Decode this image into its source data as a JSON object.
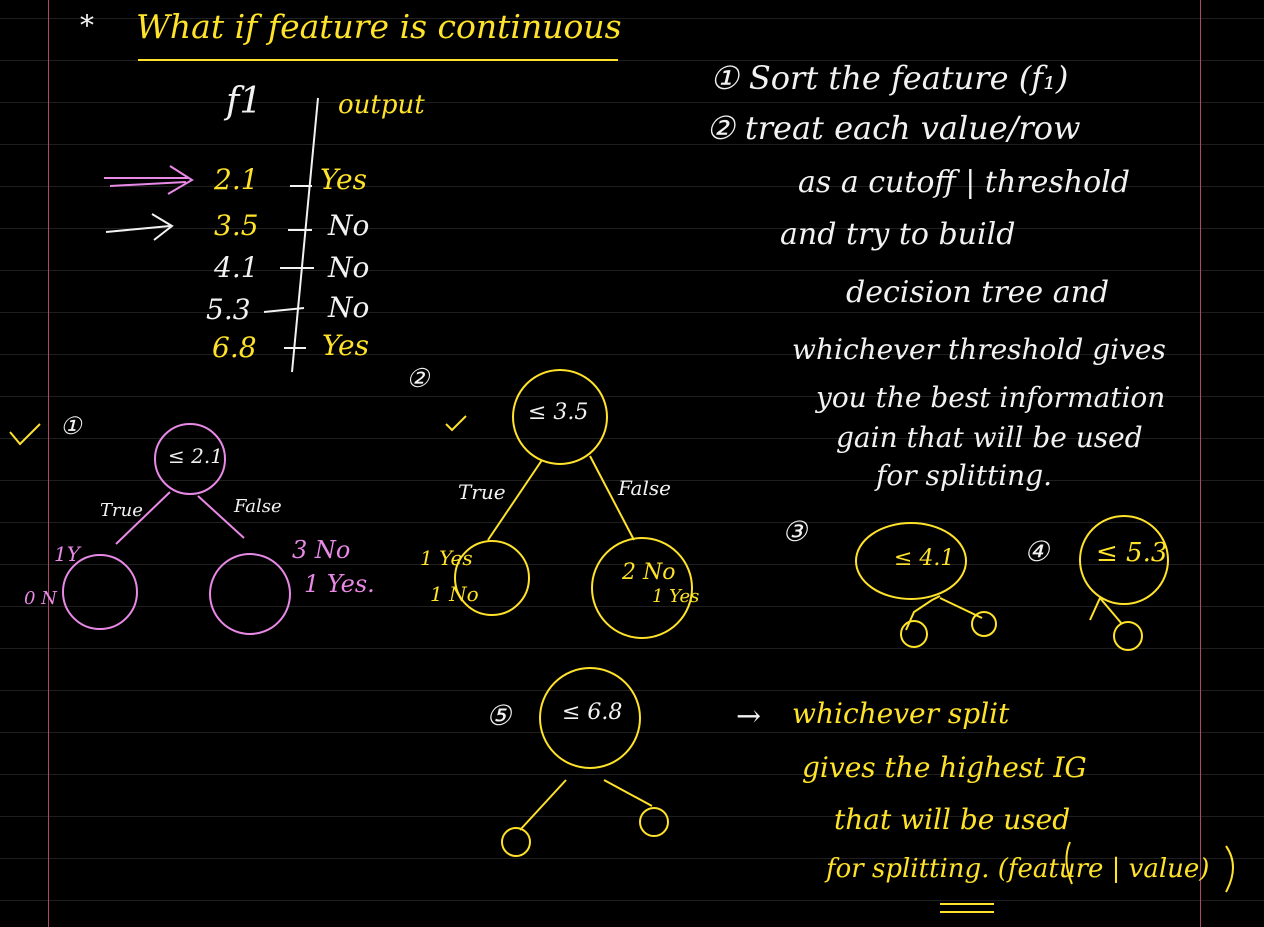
{
  "heading": {
    "bullet": "*",
    "text": "What if feature is continuous"
  },
  "table": {
    "header_feature": "f1",
    "header_output": "output",
    "rows": [
      {
        "value": "2.1",
        "output": "Yes"
      },
      {
        "value": "3.5",
        "output": "No"
      },
      {
        "value": "4.1",
        "output": "No"
      },
      {
        "value": "5.3",
        "output": "No"
      },
      {
        "value": "6.8",
        "output": "Yes"
      }
    ]
  },
  "steps": {
    "step1": "① Sort the feature (f₁)",
    "step2": "② treat each value/row",
    "lines": [
      "as a cutoff | threshold",
      "and try to build",
      "decision tree and",
      "whichever threshold gives",
      "you the best information",
      "gain that will be used",
      "for splitting."
    ]
  },
  "trees": {
    "t1": {
      "marker": "①",
      "check": "✓",
      "node": "≤ 2.1",
      "true_label": "True",
      "false_label": "False",
      "left_note_top": "1Y",
      "left_note_bottom": "0 N",
      "right_note_top": "3 No",
      "right_note_bottom": "1 Yes."
    },
    "t2": {
      "marker": "②",
      "check": "✓",
      "node": "≤ 3.5",
      "true_label": "True",
      "false_label": "False",
      "left_note_top": "1 Yes",
      "left_note_bottom": "1 No",
      "right_note_top": "2 No",
      "right_note_bottom": "1 Yes"
    },
    "t3": {
      "marker": "③",
      "node": "≤ 4.1"
    },
    "t4": {
      "marker": "④",
      "node": "≤ 5.3"
    },
    "t5": {
      "marker": "⑤",
      "node": "≤ 6.8"
    }
  },
  "conclusion": {
    "arrow": "→",
    "lines": [
      "whichever split",
      "gives the highest IG",
      "that will be used",
      "for splitting. (feature | value)"
    ]
  },
  "colors": {
    "yellow": "#ffe22a",
    "white": "#f2f2f2",
    "pink": "#e989e6",
    "background": "#000000",
    "rule": "#1f1f1f",
    "margin": "#b0486e"
  }
}
